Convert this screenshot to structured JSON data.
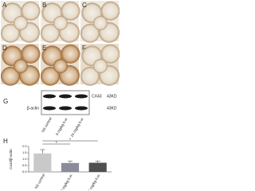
{
  "panels": [
    "A",
    "B",
    "C",
    "D",
    "E",
    "F"
  ],
  "blot": {
    "label": "G",
    "bands": [
      {
        "name": "CX43",
        "size": "43KD"
      },
      {
        "name": "β-actin",
        "size": "43KD"
      }
    ],
    "lanes": [
      "NS control",
      "9 mg/kg b.w.",
      "24 mg/kg b.w."
    ]
  },
  "chart_data": {
    "type": "bar",
    "panel_label": "H",
    "y_label": "Cx43/β-actin",
    "categories": [
      "NS control",
      "9 mg/kg b.w.",
      "24 mg/kg b.w."
    ],
    "values": [
      1.45,
      0.7,
      0.72
    ],
    "errors": [
      0.3,
      0.15,
      0.14
    ],
    "colors": [
      "#c9c9c9",
      "#8b8b9c",
      "#4f4f4f"
    ],
    "ylim": [
      0,
      2
    ],
    "yticks": [
      {
        "value": 0,
        "label": "0.0"
      },
      {
        "value": 0.5,
        "label": "0.5"
      },
      {
        "value": 1,
        "label": "1.0"
      },
      {
        "value": 1.5,
        "label": "1.5"
      },
      {
        "value": 2,
        "label": "2.0"
      }
    ],
    "annotations": [
      "*",
      "*"
    ]
  }
}
